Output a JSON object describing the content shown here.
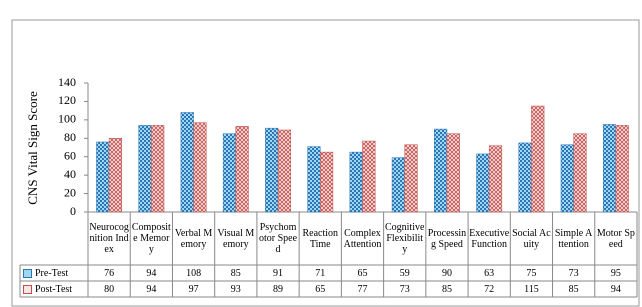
{
  "chart_data": {
    "type": "bar",
    "y_label": "CNS Vital Sign Score",
    "categories": [
      "Neurocognition Index",
      "Composite Memory",
      "Verbal Memory",
      "Visual Memory",
      "Psychomotor Speed",
      "Reaction Time",
      "Complex Attention",
      "Cognitive Flexibility",
      "Processing Speed",
      "Executive Function",
      "Social Acuity",
      "Simple Attention",
      "Motor Speed"
    ],
    "series": [
      {
        "name": "Pre-Test",
        "color": "#2e75b6",
        "values": [
          76,
          94,
          108,
          85,
          91,
          71,
          65,
          59,
          90,
          63,
          75,
          73,
          95
        ]
      },
      {
        "name": "Post-Test",
        "color": "#c0504d",
        "values": [
          80,
          94,
          97,
          93,
          89,
          65,
          77,
          73,
          85,
          72,
          115,
          85,
          94
        ]
      }
    ],
    "ylim": [
      0,
      140
    ],
    "yticks": [
      0,
      20,
      40,
      60,
      80,
      100,
      120,
      140
    ]
  }
}
